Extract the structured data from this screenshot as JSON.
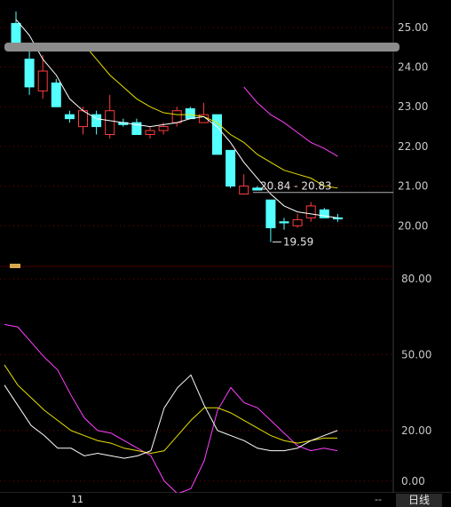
{
  "colors": {
    "up": "#ff3c3c",
    "down": "#54ffff",
    "ma_short": "#ffffff",
    "ma_mid": "#e8e000",
    "ma_long": "#ff40ff",
    "axis_text": "#c8c8c8",
    "grid": "#7a0000"
  },
  "chart_data": [
    {
      "type": "candlestick",
      "ylim": [
        19.2,
        25.4
      ],
      "y_ticks": [
        "25.00",
        "24.00",
        "23.00",
        "22.00",
        "21.00",
        "20.00"
      ],
      "candles": [
        {
          "o": 25.1,
          "h": 25.4,
          "l": 24.6,
          "c": 24.6
        },
        {
          "o": 24.2,
          "h": 24.4,
          "l": 23.3,
          "c": 23.5
        },
        {
          "o": 23.4,
          "h": 24.3,
          "l": 23.2,
          "c": 23.9
        },
        {
          "o": 23.6,
          "h": 23.7,
          "l": 23.0,
          "c": 23.0
        },
        {
          "o": 22.8,
          "h": 22.9,
          "l": 22.6,
          "c": 22.7
        },
        {
          "o": 22.5,
          "h": 23.0,
          "l": 22.3,
          "c": 22.9
        },
        {
          "o": 22.8,
          "h": 22.9,
          "l": 22.3,
          "c": 22.5
        },
        {
          "o": 22.3,
          "h": 23.3,
          "l": 22.2,
          "c": 22.9
        },
        {
          "o": 22.6,
          "h": 22.7,
          "l": 22.5,
          "c": 22.55
        },
        {
          "o": 22.6,
          "h": 22.7,
          "l": 22.3,
          "c": 22.3
        },
        {
          "o": 22.3,
          "h": 22.5,
          "l": 22.2,
          "c": 22.4
        },
        {
          "o": 22.4,
          "h": 22.6,
          "l": 22.3,
          "c": 22.5
        },
        {
          "o": 22.6,
          "h": 23.0,
          "l": 22.5,
          "c": 22.9
        },
        {
          "o": 22.95,
          "h": 23.0,
          "l": 22.7,
          "c": 22.7
        },
        {
          "o": 22.6,
          "h": 23.1,
          "l": 22.6,
          "c": 22.8
        },
        {
          "o": 22.8,
          "h": 22.8,
          "l": 21.8,
          "c": 21.8
        },
        {
          "o": 21.9,
          "h": 21.9,
          "l": 20.95,
          "c": 21.0
        },
        {
          "o": 20.8,
          "h": 21.3,
          "l": 20.8,
          "c": 21.0
        },
        {
          "o": 20.95,
          "h": 21.0,
          "l": 20.9,
          "c": 20.9
        },
        {
          "o": 20.65,
          "h": 20.65,
          "l": 19.59,
          "c": 19.95
        },
        {
          "o": 20.1,
          "h": 20.2,
          "l": 19.9,
          "c": 20.1
        },
        {
          "o": 20.0,
          "h": 20.3,
          "l": 19.95,
          "c": 20.15
        },
        {
          "o": 20.2,
          "h": 20.6,
          "l": 20.1,
          "c": 20.5
        },
        {
          "o": 20.4,
          "h": 20.45,
          "l": 20.2,
          "c": 20.2
        },
        {
          "o": 20.2,
          "h": 20.3,
          "l": 20.1,
          "c": 20.2
        }
      ],
      "ma_white": [
        [
          0,
          25.2
        ],
        [
          1,
          24.8
        ],
        [
          2,
          24.2
        ],
        [
          3,
          23.8
        ],
        [
          4,
          23.2
        ],
        [
          5,
          22.9
        ],
        [
          6,
          22.7
        ],
        [
          7,
          22.65
        ],
        [
          8,
          22.6
        ],
        [
          9,
          22.55
        ],
        [
          10,
          22.5
        ],
        [
          11,
          22.55
        ],
        [
          12,
          22.6
        ],
        [
          13,
          22.7
        ],
        [
          14,
          22.75
        ],
        [
          15,
          22.5
        ],
        [
          16,
          22.1
        ],
        [
          17,
          21.6
        ],
        [
          18,
          21.2
        ],
        [
          19,
          20.8
        ],
        [
          20,
          20.5
        ],
        [
          21,
          20.35
        ],
        [
          22,
          20.3
        ],
        [
          23,
          20.25
        ],
        [
          24,
          20.2
        ]
      ],
      "ma_yellow": [
        [
          5,
          24.6
        ],
        [
          6,
          24.2
        ],
        [
          7,
          23.8
        ],
        [
          8,
          23.5
        ],
        [
          9,
          23.2
        ],
        [
          10,
          23.0
        ],
        [
          11,
          22.85
        ],
        [
          12,
          22.8
        ],
        [
          13,
          22.8
        ],
        [
          14,
          22.75
        ],
        [
          15,
          22.6
        ],
        [
          16,
          22.3
        ],
        [
          17,
          22.1
        ],
        [
          18,
          21.8
        ],
        [
          19,
          21.6
        ],
        [
          20,
          21.4
        ],
        [
          21,
          21.3
        ],
        [
          22,
          21.2
        ],
        [
          23,
          21.0
        ],
        [
          24,
          20.95
        ]
      ],
      "ma_magenta": [
        [
          17,
          23.5
        ],
        [
          18,
          23.1
        ],
        [
          19,
          22.8
        ],
        [
          20,
          22.6
        ],
        [
          21,
          22.35
        ],
        [
          22,
          22.1
        ],
        [
          23,
          21.95
        ],
        [
          24,
          21.75
        ]
      ],
      "range_label": "20.84 - 20.83",
      "range_value": 20.84,
      "low_label": "19.59",
      "low_value": 19.59,
      "low_index": 19
    },
    {
      "type": "line",
      "ylim": [
        -5,
        85
      ],
      "y_ticks": [
        "80.00",
        "50.00",
        "20.00",
        "0.00"
      ],
      "series": [
        {
          "color": "magenta",
          "values": [
            [
              0,
              62
            ],
            [
              1,
              61
            ],
            [
              2,
              55
            ],
            [
              3,
              49
            ],
            [
              4,
              44
            ],
            [
              5,
              34
            ],
            [
              6,
              25
            ],
            [
              7,
              20
            ],
            [
              8,
              19
            ],
            [
              9,
              16
            ],
            [
              10,
              13
            ],
            [
              11,
              10
            ],
            [
              12,
              0
            ],
            [
              13,
              -5
            ],
            [
              14,
              -3
            ],
            [
              15,
              8
            ],
            [
              16,
              28
            ],
            [
              17,
              37
            ],
            [
              18,
              31
            ],
            [
              19,
              29
            ],
            [
              20,
              24
            ],
            [
              21,
              19
            ],
            [
              22,
              14
            ],
            [
              23,
              12
            ],
            [
              24,
              13
            ],
            [
              25,
              12
            ]
          ]
        },
        {
          "color": "yellow",
          "values": [
            [
              0,
              46
            ],
            [
              1,
              38
            ],
            [
              2,
              33
            ],
            [
              3,
              28
            ],
            [
              4,
              24
            ],
            [
              5,
              20
            ],
            [
              6,
              18
            ],
            [
              7,
              16
            ],
            [
              8,
              15
            ],
            [
              9,
              13
            ],
            [
              10,
              12
            ],
            [
              11,
              11
            ],
            [
              12,
              12
            ],
            [
              13,
              18
            ],
            [
              14,
              24
            ],
            [
              15,
              29
            ],
            [
              16,
              29
            ],
            [
              17,
              27
            ],
            [
              18,
              24
            ],
            [
              19,
              21
            ],
            [
              20,
              18
            ],
            [
              21,
              16
            ],
            [
              22,
              15
            ],
            [
              23,
              16
            ],
            [
              24,
              17
            ],
            [
              25,
              17
            ]
          ]
        },
        {
          "color": "white",
          "values": [
            [
              0,
              38
            ],
            [
              1,
              30
            ],
            [
              2,
              22
            ],
            [
              3,
              18
            ],
            [
              4,
              13
            ],
            [
              5,
              13
            ],
            [
              6,
              10
            ],
            [
              7,
              11
            ],
            [
              8,
              10
            ],
            [
              9,
              9
            ],
            [
              10,
              10
            ],
            [
              11,
              12
            ],
            [
              12,
              29
            ],
            [
              13,
              37
            ],
            [
              14,
              42
            ],
            [
              15,
              30
            ],
            [
              16,
              20
            ],
            [
              17,
              18
            ],
            [
              18,
              16
            ],
            [
              19,
              13
            ],
            [
              20,
              12
            ],
            [
              21,
              12
            ],
            [
              22,
              13
            ],
            [
              23,
              16
            ],
            [
              24,
              18
            ],
            [
              25,
              20
            ]
          ]
        }
      ]
    }
  ],
  "bottom_bar": {
    "date_label": "11",
    "separator": "--",
    "period_label": "日线"
  }
}
